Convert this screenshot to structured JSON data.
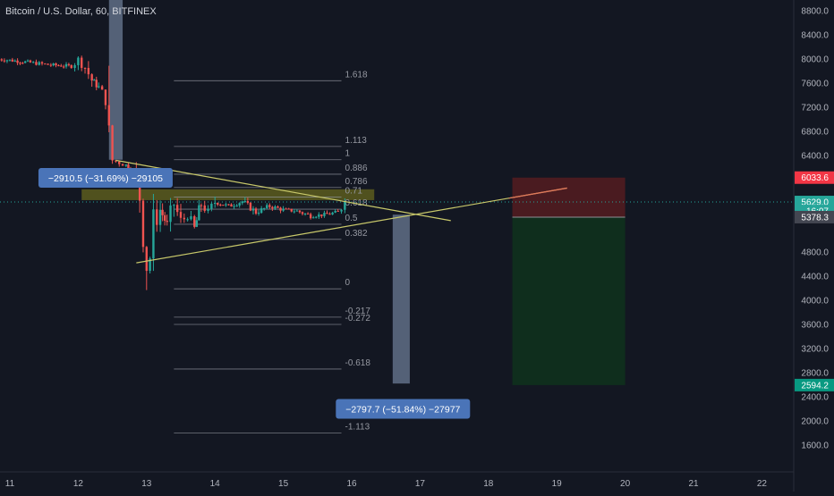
{
  "chart_title": "Bitcoin / U.S. Dollar, 60, BITFINEX",
  "colors": {
    "background": "#131722",
    "up_candle": "#26a69a",
    "down_candle": "#ef5350",
    "trendline": "#c8c86a",
    "fib_line": "#787b86",
    "highlight_zone": "#66661e",
    "measure_box": "#8a9fbe",
    "measure_label_bg": "#4a74b8",
    "stop_zone": "#4a1b20",
    "target_zone": "#0f2e1d",
    "last_price_line": "#26a69a"
  },
  "chart_data": {
    "type": "candlestick",
    "symbol": "Bitcoin / U.S. Dollar",
    "interval": "60",
    "exchange": "BITFINEX",
    "x_ticks": [
      "11",
      "12",
      "13",
      "14",
      "15",
      "16",
      "17",
      "18",
      "19",
      "20",
      "21",
      "22"
    ],
    "y_ticks": [
      "8800.0",
      "8400.0",
      "8000.0",
      "7600.0",
      "7200.0",
      "6800.0",
      "6400.0",
      "5600.0",
      "4800.0",
      "4400.0",
      "4000.0",
      "3600.0",
      "3200.0",
      "2800.0",
      "2400.0",
      "2000.0",
      "1600.0"
    ],
    "ylim": [
      1200,
      9000
    ],
    "xlim": [
      10.8,
      22.6
    ],
    "price_path": [
      [
        10.8,
        8000
      ],
      [
        11.0,
        7980
      ],
      [
        11.3,
        7940
      ],
      [
        11.6,
        7900
      ],
      [
        11.9,
        7880
      ],
      [
        12.0,
        7990
      ],
      [
        12.1,
        7860
      ],
      [
        12.2,
        7650
      ],
      [
        12.3,
        7530
      ],
      [
        12.4,
        7320
      ],
      [
        12.45,
        6500
      ],
      [
        12.5,
        6320
      ],
      [
        12.6,
        6280
      ],
      [
        12.7,
        6240
      ],
      [
        12.8,
        6120
      ],
      [
        12.9,
        5700
      ],
      [
        12.95,
        5200
      ],
      [
        13.0,
        4650
      ],
      [
        13.05,
        4700
      ],
      [
        13.1,
        5200
      ],
      [
        13.2,
        5500
      ],
      [
        13.3,
        5250
      ],
      [
        13.4,
        5600
      ],
      [
        13.5,
        5300
      ],
      [
        13.6,
        5400
      ],
      [
        13.7,
        5180
      ],
      [
        13.8,
        5600
      ],
      [
        13.9,
        5450
      ],
      [
        14.0,
        5630
      ],
      [
        14.2,
        5560
      ],
      [
        14.4,
        5640
      ],
      [
        14.6,
        5460
      ],
      [
        14.8,
        5560
      ],
      [
        15.0,
        5500
      ],
      [
        15.2,
        5480
      ],
      [
        15.4,
        5400
      ],
      [
        15.6,
        5420
      ],
      [
        15.8,
        5460
      ],
      [
        15.9,
        5629
      ]
    ],
    "price_labels": [
      {
        "text": "6033.6",
        "price": 6033.6,
        "color": "#f23645"
      },
      {
        "text": "5629.0",
        "price": 5629.0,
        "color": "#26a69a"
      },
      {
        "text": "16:07",
        "price": 5480,
        "color": "#26a69a"
      },
      {
        "text": "5378.3",
        "price": 5378.3,
        "color": "#434651"
      },
      {
        "text": "2594.2",
        "price": 2594.2,
        "color": "#089981"
      }
    ],
    "fibonacci": {
      "x_start": 13.4,
      "x_end": 15.85,
      "levels": [
        {
          "label": "1.618",
          "price": 7640
        },
        {
          "label": "1.113",
          "price": 6550
        },
        {
          "label": "1",
          "price": 6330
        },
        {
          "label": "0.886",
          "price": 6090
        },
        {
          "label": "0.786",
          "price": 5870
        },
        {
          "label": "0.71",
          "price": 5710
        },
        {
          "label": "0.618",
          "price": 5510
        },
        {
          "label": "0.5",
          "price": 5260
        },
        {
          "label": "0.382",
          "price": 5010
        },
        {
          "label": "0",
          "price": 4190
        },
        {
          "label": "-0.217",
          "price": 3720
        },
        {
          "label": "-0.272",
          "price": 3600
        },
        {
          "label": "-0.618",
          "price": 2860
        },
        {
          "label": "-1.113",
          "price": 1800
        }
      ]
    },
    "trendlines": [
      {
        "x1": 12.55,
        "y1": 6320,
        "x2": 17.45,
        "y2": 5320
      },
      {
        "x1": 12.85,
        "y1": 4620,
        "x2": 19.15,
        "y2": 5860
      }
    ],
    "highlight_zone": {
      "x1": 12.05,
      "x2": 16.33,
      "y1": 5660,
      "y2": 5840
    },
    "measurements": [
      {
        "label": "−2910.5 (−31.69%) −29105",
        "x1": 12.45,
        "x2": 12.65,
        "y_top": 9000,
        "y_bottom": 6330,
        "label_x": 12.4,
        "label_price": 6030
      },
      {
        "label": "−2797.7 (−51.84%) −27977",
        "x1": 16.6,
        "x2": 16.85,
        "y_top": 5420,
        "y_bottom": 2620,
        "label_x": 16.75,
        "label_price": 2200
      }
    ],
    "position": {
      "x1": 18.35,
      "x2": 20.0,
      "stop": 6033.6,
      "entry": 5378.3,
      "target": 2594.2
    }
  }
}
